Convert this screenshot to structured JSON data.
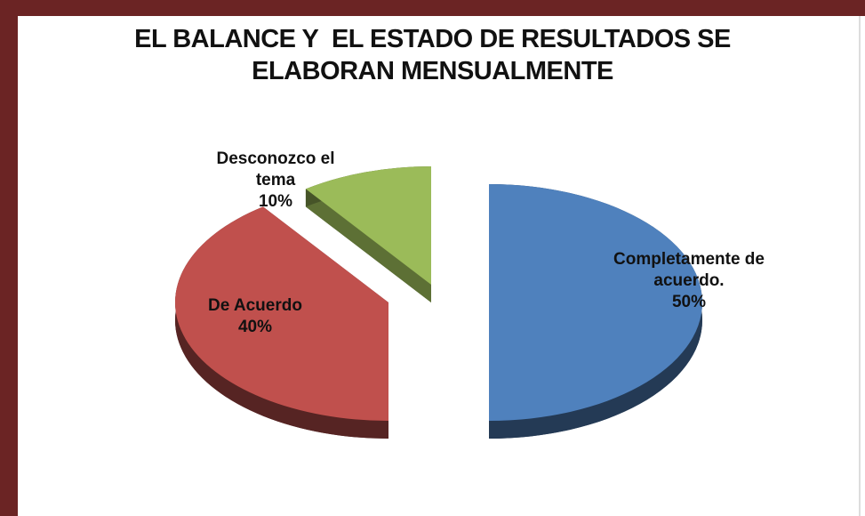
{
  "chart_data": {
    "type": "pie",
    "title": "EL BALANCE Y  EL ESTADO DE RESULTADOS SE ELABORAN MENSUALMENTE",
    "categories": [
      "Completamente de acuerdo.",
      "De Acuerdo",
      "Desconozco el tema"
    ],
    "values": [
      50,
      40,
      10
    ],
    "value_labels": [
      "50%",
      "40%",
      "10%"
    ],
    "colors": [
      "#4f81bd",
      "#c0504d",
      "#9bbb59"
    ]
  }
}
